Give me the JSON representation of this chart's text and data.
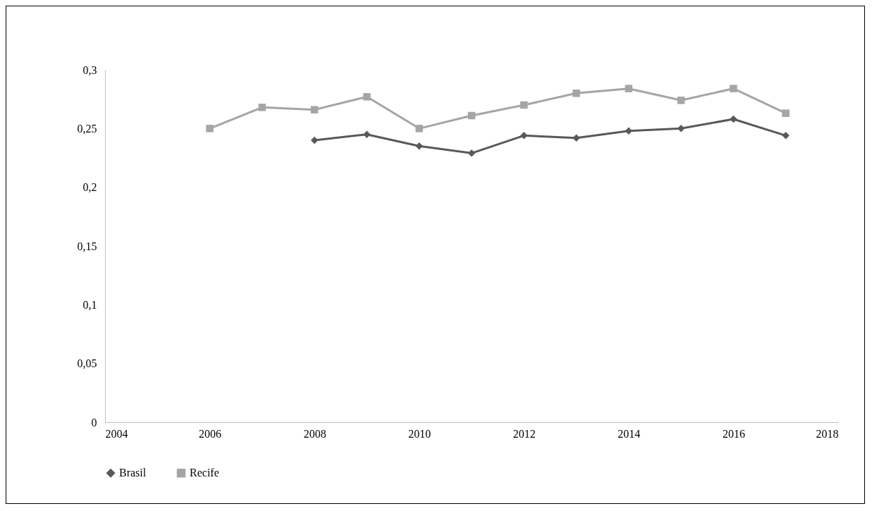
{
  "chart_data": {
    "type": "line",
    "xlim": [
      2004,
      2018
    ],
    "xticks": [
      2004,
      2006,
      2008,
      2010,
      2012,
      2014,
      2016,
      2018
    ],
    "ylim": [
      0,
      0.3
    ],
    "yticks": [
      0,
      {
        "value": 0.05,
        "label": "0,05"
      },
      {
        "value": 0.1,
        "label": "0,1"
      },
      {
        "value": 0.15,
        "label": "0,15"
      },
      {
        "value": 0.2,
        "label": "0,2"
      },
      {
        "value": 0.25,
        "label": "0,25"
      },
      {
        "value": 0.3,
        "label": "0,3"
      }
    ],
    "grid": false,
    "legend": "bottom",
    "line_style": "solid",
    "series": [
      {
        "name": "Brasil",
        "color": "#595959",
        "marker": "diamond",
        "x": [
          2008,
          2009,
          2010,
          2011,
          2012,
          2013,
          2014,
          2015,
          2016,
          2017
        ],
        "values": [
          0.24,
          0.245,
          0.235,
          0.229,
          0.244,
          0.242,
          0.248,
          0.25,
          0.258,
          0.244
        ]
      },
      {
        "name": "Recife",
        "color": "#a5a5a5",
        "marker": "square",
        "x": [
          2006,
          2007,
          2008,
          2009,
          2010,
          2011,
          2012,
          2013,
          2014,
          2015,
          2016,
          2017
        ],
        "values": [
          0.25,
          0.268,
          0.266,
          0.277,
          0.25,
          0.261,
          0.27,
          0.28,
          0.284,
          0.274,
          0.284,
          0.263
        ]
      }
    ]
  }
}
